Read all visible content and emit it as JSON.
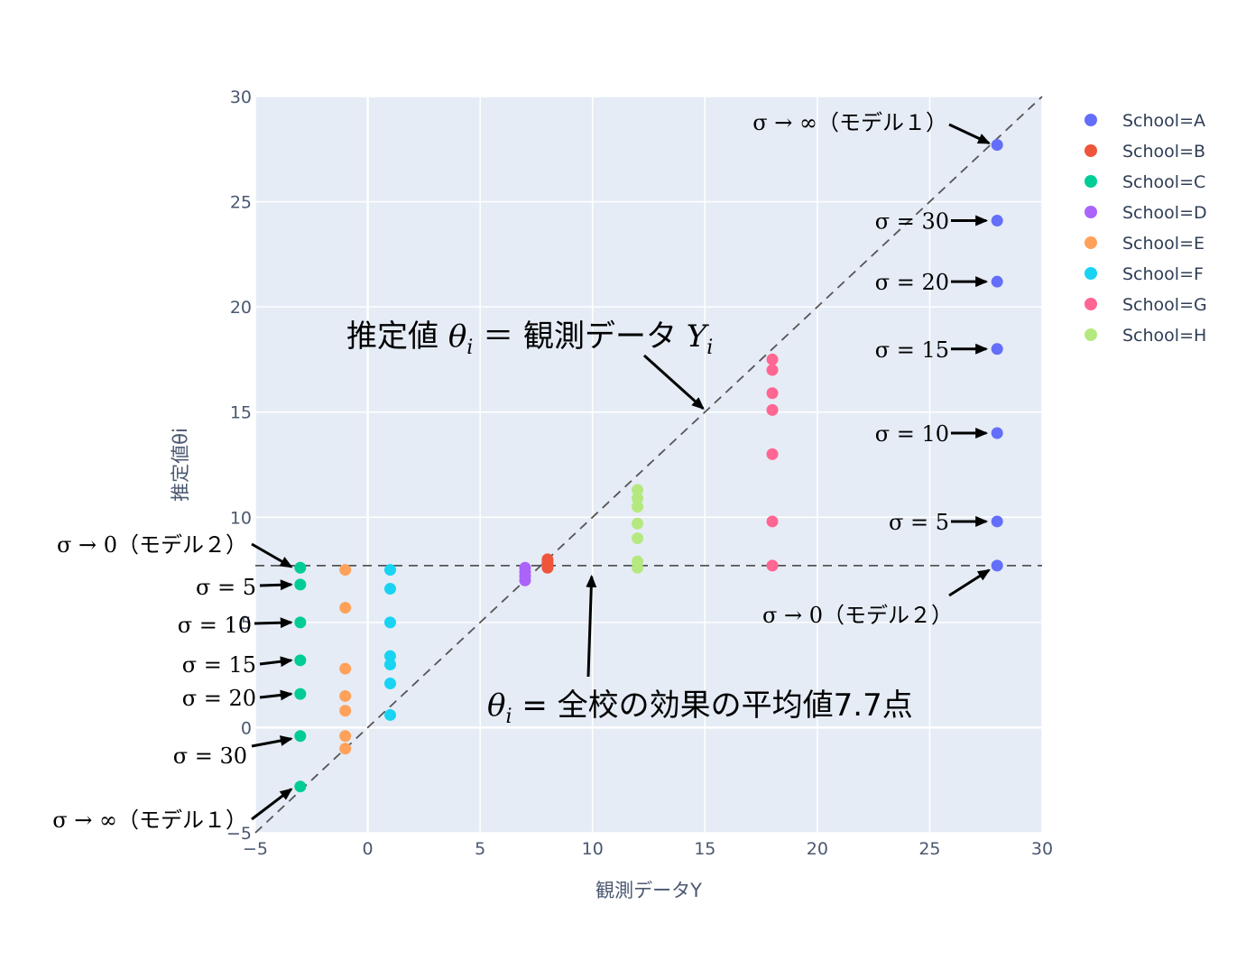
{
  "chart_data": {
    "type": "scatter",
    "xlabel": "観測データY",
    "ylabel": "推定値θi",
    "xlim": [
      -5,
      30
    ],
    "ylim": [
      -5,
      30
    ],
    "x_ticks": [
      -5,
      0,
      5,
      10,
      15,
      20,
      25,
      30
    ],
    "y_ticks": [
      -5,
      0,
      5,
      10,
      15,
      20,
      25,
      30
    ],
    "tick_labels": {
      "x": [
        "−5",
        "0",
        "5",
        "10",
        "15",
        "20",
        "25",
        "30"
      ],
      "y": [
        "−5",
        "0",
        "5",
        "10",
        "15",
        "20",
        "25",
        "30"
      ]
    },
    "grid": true,
    "legend_position": "top-right-outside",
    "series": [
      {
        "name": "School=A",
        "color": "#636efa",
        "x": [
          28,
          28,
          28,
          28,
          28,
          28,
          28
        ],
        "y": [
          7.7,
          9.8,
          14.0,
          18.0,
          21.2,
          24.1,
          27.7
        ]
      },
      {
        "name": "School=B",
        "color": "#ef553b",
        "x": [
          8,
          8,
          8,
          8
        ],
        "y": [
          7.6,
          7.8,
          7.9,
          8.0
        ]
      },
      {
        "name": "School=C",
        "color": "#00cc96",
        "x": [
          -3,
          -3,
          -3,
          -3,
          -3,
          -3,
          -3
        ],
        "y": [
          7.6,
          6.8,
          5.0,
          3.2,
          1.6,
          -0.4,
          -2.8
        ]
      },
      {
        "name": "School=D",
        "color": "#ab63fa",
        "x": [
          7,
          7,
          7,
          7
        ],
        "y": [
          7.6,
          7.4,
          7.2,
          7.0
        ]
      },
      {
        "name": "School=E",
        "color": "#ffa15a",
        "x": [
          -1,
          -1,
          -1,
          -1,
          -1,
          -1,
          -1
        ],
        "y": [
          7.5,
          5.7,
          2.8,
          1.5,
          0.8,
          -0.4,
          -1.0
        ]
      },
      {
        "name": "School=F",
        "color": "#19d3f3",
        "x": [
          1,
          1,
          1,
          1,
          1,
          1,
          1
        ],
        "y": [
          7.5,
          6.6,
          5.0,
          3.4,
          3.0,
          2.1,
          0.6
        ]
      },
      {
        "name": "School=G",
        "color": "#ff6692",
        "x": [
          18,
          18,
          18,
          18,
          18,
          18,
          18
        ],
        "y": [
          7.7,
          9.8,
          13.0,
          15.1,
          15.9,
          17.0,
          17.5
        ]
      },
      {
        "name": "School=H",
        "color": "#b6e880",
        "x": [
          12,
          12,
          12,
          12,
          12,
          12,
          12
        ],
        "y": [
          7.6,
          7.9,
          9.0,
          9.7,
          10.5,
          10.9,
          11.3
        ]
      }
    ],
    "reference_lines": [
      {
        "name": "identity",
        "from": [
          -5,
          -5
        ],
        "to": [
          30,
          30
        ]
      },
      {
        "name": "pooled-mean",
        "y": 7.7
      }
    ],
    "annotations": {
      "right": [
        {
          "text": "σ → ∞（モデル１）",
          "point": [
            28,
            27.7
          ]
        },
        {
          "text": "σ = 30",
          "point": [
            28,
            24.1
          ]
        },
        {
          "text": "σ = 20",
          "point": [
            28,
            21.2
          ]
        },
        {
          "text": "σ = 15",
          "point": [
            28,
            18.0
          ]
        },
        {
          "text": "σ = 10",
          "point": [
            28,
            14.0
          ]
        },
        {
          "text": "σ = 5",
          "point": [
            28,
            9.8
          ]
        },
        {
          "text": "σ → 0（モデル２）",
          "point": [
            28,
            7.7
          ]
        }
      ],
      "left": [
        {
          "text": "σ → 0（モデル２）",
          "point": [
            -3,
            7.6
          ]
        },
        {
          "text": "σ = 5",
          "point": [
            -3,
            6.8
          ]
        },
        {
          "text": "σ = 10",
          "point": [
            -3,
            5.0
          ]
        },
        {
          "text": "σ = 15",
          "point": [
            -3,
            3.2
          ]
        },
        {
          "text": "σ = 20",
          "point": [
            -3,
            1.6
          ]
        },
        {
          "text": "σ = 30",
          "point": [
            -3,
            -0.4
          ]
        },
        {
          "text": "σ → ∞（モデル１）",
          "point": [
            -3,
            -2.8
          ]
        }
      ],
      "identity_label": {
        "text_prefix": "推定値 ",
        "theta": "θ",
        "sub_i": "i",
        "middle": " ＝ 観測データ ",
        "y_sym": "Y",
        "sub_i2": "i",
        "point": [
          15,
          15
        ]
      },
      "mean_label": {
        "theta": "θ",
        "sub_i": "i",
        "rest": " = 全校の効果の平均値7.7点",
        "point": [
          10,
          7.7
        ]
      }
    }
  }
}
